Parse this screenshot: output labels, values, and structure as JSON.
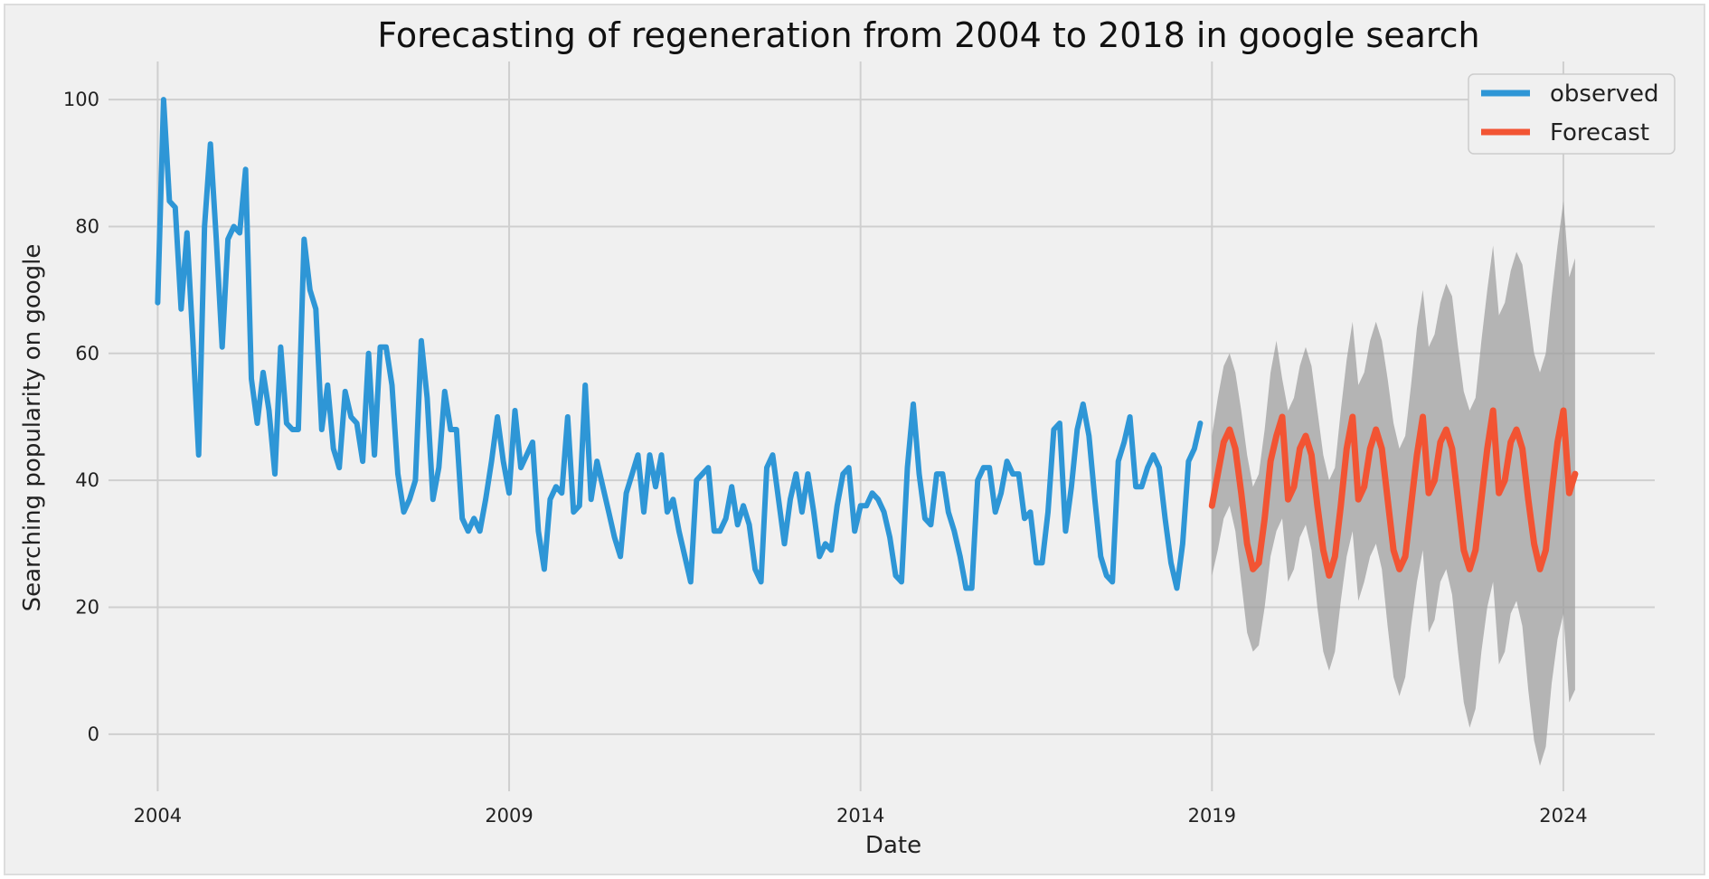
{
  "chart_data": {
    "type": "line",
    "title": "Forecasting of regeneration from 2004 to 2018 in google search",
    "xlabel": "Date",
    "ylabel": "Searching popularity on google",
    "xlim": [
      2003.3,
      2025.3
    ],
    "ylim": [
      -9,
      106
    ],
    "x_ticks": [
      2004,
      2009,
      2014,
      2019,
      2024
    ],
    "x_tick_labels": [
      "2004",
      "2009",
      "2014",
      "2019",
      "2024"
    ],
    "y_ticks": [
      0,
      20,
      40,
      60,
      80,
      100
    ],
    "y_tick_labels": [
      "0",
      "20",
      "40",
      "60",
      "80",
      "100"
    ],
    "grid": true,
    "legend_position": "top-right",
    "colors": {
      "observed": "#2e96d6",
      "forecast": "#f25433",
      "interval": "#b0b0b0",
      "plot_background": "#f0f0f0",
      "grid": "#cfcfcf"
    },
    "series": [
      {
        "name": "observed",
        "start": 2004.0,
        "step_months": 1,
        "values": [
          68,
          100,
          84,
          83,
          67,
          79,
          62,
          44,
          80,
          93,
          78,
          61,
          78,
          80,
          79,
          89,
          56,
          49,
          57,
          51,
          41,
          61,
          49,
          48,
          48,
          78,
          70,
          67,
          48,
          55,
          45,
          42,
          54,
          50,
          49,
          43,
          60,
          44,
          61,
          61,
          55,
          41,
          35,
          37,
          40,
          62,
          53,
          37,
          42,
          54,
          48,
          48,
          34,
          32,
          34,
          32,
          37,
          43,
          50,
          43,
          38,
          51,
          42,
          44,
          46,
          32,
          26,
          37,
          39,
          38,
          50,
          35,
          36,
          55,
          37,
          43,
          39,
          35,
          31,
          28,
          38,
          41,
          44,
          35,
          44,
          39,
          44,
          35,
          37,
          32,
          28,
          24,
          40,
          41,
          42,
          32,
          32,
          34,
          39,
          33,
          36,
          33,
          26,
          24,
          42,
          44,
          37,
          30,
          37,
          41,
          35,
          41,
          35,
          28,
          30,
          29,
          36,
          41,
          42,
          32,
          36,
          36,
          38,
          37,
          35,
          31,
          25,
          24,
          42,
          52,
          41,
          34,
          33,
          41,
          41,
          35,
          32,
          28,
          23,
          23,
          40,
          42,
          42,
          35,
          38,
          43,
          41,
          41,
          34,
          35,
          27,
          27,
          35,
          48,
          49,
          32,
          39,
          48,
          52,
          47,
          37,
          28,
          25,
          24,
          43,
          46,
          50,
          39,
          39,
          42,
          44,
          42,
          34,
          27,
          23,
          30,
          43,
          45,
          49
        ]
      },
      {
        "name": "Forecast",
        "start": 2019.0,
        "step_months": 1,
        "values": [
          36,
          41,
          46,
          48,
          45,
          38,
          30,
          26,
          27,
          34,
          43,
          47,
          50,
          37,
          39,
          45,
          47,
          44,
          36,
          29,
          25,
          28,
          36,
          45,
          50,
          37,
          39,
          45,
          48,
          45,
          37,
          29,
          26,
          28,
          36,
          44,
          50,
          38,
          40,
          46,
          48,
          45,
          37,
          29,
          26,
          29,
          37,
          45,
          51,
          38,
          40,
          46,
          48,
          45,
          37,
          30,
          26,
          29,
          38,
          46,
          51,
          38,
          41
        ]
      }
    ],
    "confidence_interval": {
      "name": "",
      "start": 2019.0,
      "step_months": 1,
      "lower": [
        25,
        29,
        34,
        36,
        32,
        24,
        16,
        13,
        14,
        20,
        28,
        32,
        34,
        24,
        26,
        31,
        33,
        29,
        20,
        13,
        10,
        13,
        21,
        28,
        32,
        21,
        24,
        28,
        30,
        26,
        17,
        9,
        6,
        9,
        17,
        24,
        29,
        16,
        18,
        24,
        26,
        22,
        13,
        5,
        1,
        4,
        13,
        20,
        24,
        11,
        13,
        19,
        21,
        17,
        7,
        -1,
        -5,
        -2,
        8,
        15,
        19,
        5,
        7
      ],
      "upper": [
        47,
        53,
        58,
        60,
        57,
        51,
        44,
        39,
        41,
        48,
        57,
        62,
        56,
        51,
        53,
        58,
        61,
        58,
        51,
        44,
        40,
        42,
        51,
        59,
        65,
        55,
        57,
        62,
        65,
        62,
        56,
        49,
        45,
        47,
        55,
        64,
        70,
        61,
        63,
        68,
        71,
        69,
        61,
        54,
        51,
        53,
        62,
        70,
        77,
        66,
        68,
        73,
        76,
        74,
        67,
        60,
        57,
        60,
        69,
        77,
        84,
        72,
        75
      ]
    }
  }
}
